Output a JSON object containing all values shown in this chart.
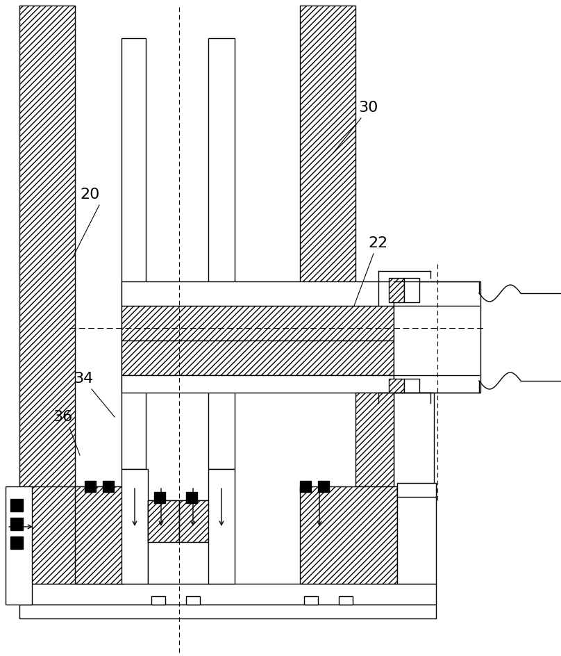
{
  "bg_color": "#ffffff",
  "line_color": "#000000",
  "fig_width": 8.08,
  "fig_height": 9.44,
  "lw": 1.0
}
